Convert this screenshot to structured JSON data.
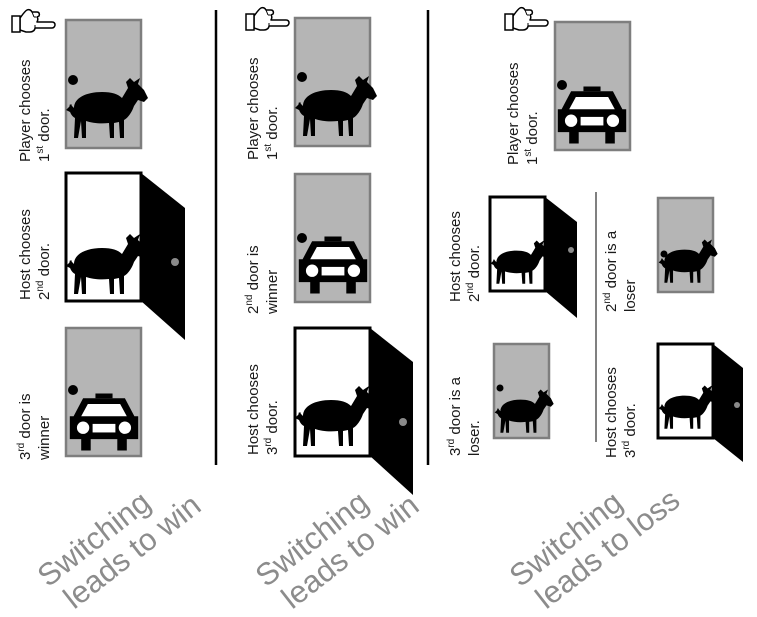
{
  "columns": [
    {
      "stacks": [
        {
          "line1": "Player chooses",
          "line2_base": "1",
          "line2_sup": "st",
          "line2_rest": " door."
        },
        {
          "line1": "Host chooses",
          "line2_base": "2",
          "line2_sup": "nd",
          "line2_rest": " door."
        },
        {
          "line1_base": "3",
          "line1_sup": "rd",
          "line1_rest": " door is",
          "line2": "winner"
        }
      ],
      "caption_line1": "Switching",
      "caption_line2": "leads to win"
    },
    {
      "stacks": [
        {
          "line1": "Player chooses",
          "line2_base": "1",
          "line2_sup": "st",
          "line2_rest": " door."
        },
        {
          "line1_base": "2",
          "line1_sup": "nd",
          "line1_rest": " door is",
          "line2": "winner"
        },
        {
          "line1": "Host chooses",
          "line2_base": "3",
          "line2_sup": "rd",
          "line2_rest": " door."
        }
      ],
      "caption_line1": "Switching",
      "caption_line2": "leads to win"
    },
    {
      "stacks": [
        {
          "line1": "Player chooses",
          "line2_base": "1",
          "line2_sup": "st",
          "line2_rest": " door."
        },
        {
          "line1": "Host chooses",
          "line2_base": "2",
          "line2_sup": "nd",
          "line2_rest": " door."
        },
        {
          "line1_base": "3",
          "line1_sup": "rd",
          "line1_rest": " door is a",
          "line2": "loser."
        },
        {
          "line1_base": "2",
          "line1_sup": "nd",
          "line1_rest": " door is a",
          "line2": "loser"
        },
        {
          "line1": "Host chooses",
          "line2_base": "3",
          "line2_sup": "rd",
          "line2_rest": " door."
        }
      ],
      "caption_line1": "Switching",
      "caption_line2": "leads to loss"
    }
  ],
  "icons": {
    "pointer": "pointing-hand-icon",
    "goat": "goat-icon",
    "car": "car-icon"
  },
  "colors": {
    "closed_door_fill": "#b5b5b5",
    "closed_door_border": "#7e7e7e",
    "open_door_panel": "#000000",
    "caption_text": "#8c8c8c"
  }
}
